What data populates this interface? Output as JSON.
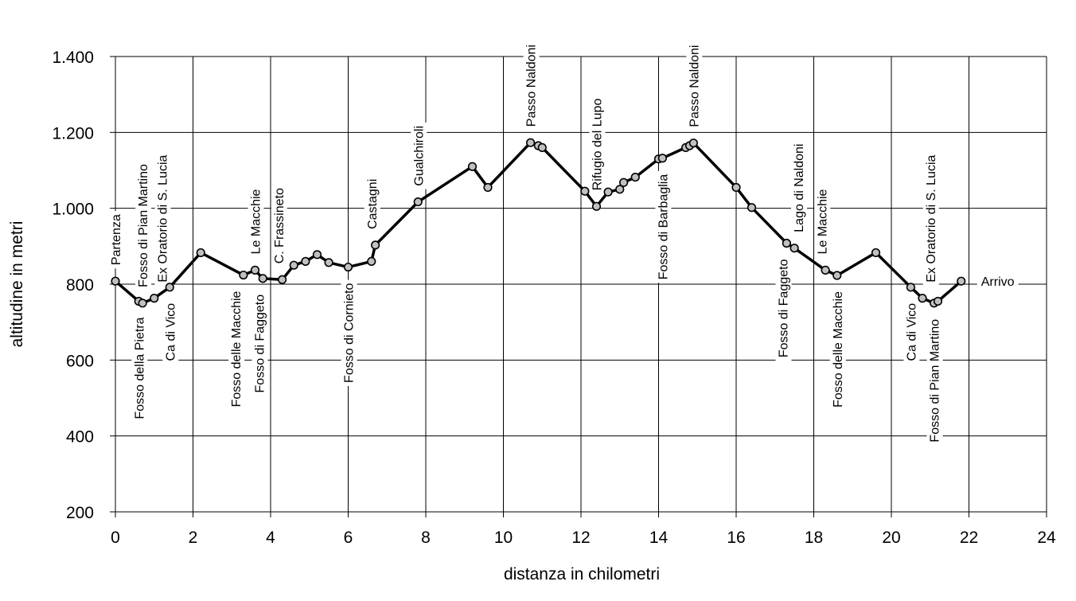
{
  "chart_data": {
    "type": "line",
    "xlabel": "distanza in chilometri",
    "ylabel": "altitudine  in metri",
    "xlim": [
      0,
      24
    ],
    "ylim": [
      200,
      1400
    ],
    "x_ticks": [
      "0",
      "2",
      "4",
      "6",
      "8",
      "10",
      "12",
      "14",
      "16",
      "18",
      "20",
      "22",
      "24"
    ],
    "y_ticks": [
      "200",
      "400",
      "600",
      "800",
      "1.000",
      "1.200",
      "1.400"
    ],
    "grid": true,
    "series": [
      {
        "points": [
          {
            "x": 0.0,
            "y": 808
          },
          {
            "x": 0.6,
            "y": 755
          },
          {
            "x": 0.7,
            "y": 750
          },
          {
            "x": 1.0,
            "y": 763
          },
          {
            "x": 1.4,
            "y": 792
          },
          {
            "x": 2.2,
            "y": 883
          },
          {
            "x": 3.3,
            "y": 824
          },
          {
            "x": 3.6,
            "y": 837
          },
          {
            "x": 3.8,
            "y": 815
          },
          {
            "x": 4.3,
            "y": 812
          },
          {
            "x": 4.6,
            "y": 850
          },
          {
            "x": 4.9,
            "y": 860
          },
          {
            "x": 5.2,
            "y": 878
          },
          {
            "x": 5.5,
            "y": 857
          },
          {
            "x": 6.0,
            "y": 845
          },
          {
            "x": 6.6,
            "y": 860
          },
          {
            "x": 6.7,
            "y": 903
          },
          {
            "x": 7.8,
            "y": 1017
          },
          {
            "x": 9.2,
            "y": 1110
          },
          {
            "x": 9.6,
            "y": 1055
          },
          {
            "x": 10.7,
            "y": 1173
          },
          {
            "x": 10.9,
            "y": 1165
          },
          {
            "x": 11.0,
            "y": 1160
          },
          {
            "x": 12.1,
            "y": 1045
          },
          {
            "x": 12.4,
            "y": 1005
          },
          {
            "x": 12.7,
            "y": 1043
          },
          {
            "x": 13.0,
            "y": 1050
          },
          {
            "x": 13.1,
            "y": 1068
          },
          {
            "x": 13.4,
            "y": 1082
          },
          {
            "x": 14.0,
            "y": 1130
          },
          {
            "x": 14.1,
            "y": 1132
          },
          {
            "x": 14.7,
            "y": 1160
          },
          {
            "x": 14.8,
            "y": 1165
          },
          {
            "x": 14.9,
            "y": 1172
          },
          {
            "x": 16.0,
            "y": 1055
          },
          {
            "x": 16.4,
            "y": 1002
          },
          {
            "x": 17.3,
            "y": 908
          },
          {
            "x": 17.5,
            "y": 895
          },
          {
            "x": 18.3,
            "y": 837
          },
          {
            "x": 18.6,
            "y": 823
          },
          {
            "x": 19.6,
            "y": 883
          },
          {
            "x": 20.5,
            "y": 792
          },
          {
            "x": 20.8,
            "y": 763
          },
          {
            "x": 21.1,
            "y": 750
          },
          {
            "x": 21.2,
            "y": 755
          },
          {
            "x": 21.8,
            "y": 808
          }
        ]
      }
    ],
    "annotations": [
      {
        "text": "Partenza",
        "x": 0.0,
        "y": 808,
        "side": "above",
        "rotated": true
      },
      {
        "text": "Fosso della Pietra",
        "x": 0.6,
        "y": 755,
        "side": "below",
        "rotated": true
      },
      {
        "text": "Fosso di Pian Martino",
        "x": 0.7,
        "y": 750,
        "side": "above",
        "rotated": true
      },
      {
        "text": "Ex Oratorio di S. Lucia",
        "x": 1.2,
        "y": 763,
        "side": "above",
        "rotated": true
      },
      {
        "text": "Ca di Vico",
        "x": 1.4,
        "y": 792,
        "side": "below",
        "rotated": true
      },
      {
        "text": "Fosso delle Macchie",
        "x": 3.1,
        "y": 824,
        "side": "below",
        "rotated": true
      },
      {
        "text": "Le Macchie",
        "x": 3.6,
        "y": 837,
        "side": "above",
        "rotated": true
      },
      {
        "text": "Fosso di Faggeto",
        "x": 3.7,
        "y": 815,
        "side": "below",
        "rotated": true
      },
      {
        "text": "C. Frassineto",
        "x": 4.2,
        "y": 812,
        "side": "above",
        "rotated": true
      },
      {
        "text": "Fosso di Cornieto",
        "x": 6.0,
        "y": 845,
        "side": "below",
        "rotated": true
      },
      {
        "text": "Castagni",
        "x": 6.6,
        "y": 903,
        "side": "above",
        "rotated": true
      },
      {
        "text": "Gualchiroli",
        "x": 7.8,
        "y": 1017,
        "side": "above",
        "rotated": true
      },
      {
        "text": "Passo Naldoni",
        "x": 10.7,
        "y": 1173,
        "side": "above",
        "rotated": true
      },
      {
        "text": "Rifugio del Lupo",
        "x": 12.4,
        "y": 1005,
        "side": "above",
        "rotated": true
      },
      {
        "text": "Fosso di Barbaglia",
        "x": 14.1,
        "y": 1132,
        "side": "below",
        "rotated": true
      },
      {
        "text": "Passo Naldoni",
        "x": 14.9,
        "y": 1172,
        "side": "above",
        "rotated": true
      },
      {
        "text": "Fosso di Faggeto",
        "x": 17.2,
        "y": 908,
        "side": "below",
        "rotated": true
      },
      {
        "text": "Lago di Naldoni",
        "x": 17.6,
        "y": 895,
        "side": "above",
        "rotated": true
      },
      {
        "text": "Le Macchie",
        "x": 18.2,
        "y": 837,
        "side": "above",
        "rotated": true
      },
      {
        "text": "Fosso delle Macchie",
        "x": 18.6,
        "y": 823,
        "side": "below",
        "rotated": true
      },
      {
        "text": "Ca di Vico",
        "x": 20.5,
        "y": 792,
        "side": "below",
        "rotated": true
      },
      {
        "text": "Ex Oratorio di S. Lucia",
        "x": 21.0,
        "y": 763,
        "side": "above",
        "rotated": true
      },
      {
        "text": "Fosso di Pian Martino",
        "x": 21.1,
        "y": 750,
        "side": "below",
        "rotated": true
      },
      {
        "text": "Arrivo",
        "x": 21.8,
        "y": 808,
        "side": "right",
        "rotated": false
      }
    ]
  }
}
